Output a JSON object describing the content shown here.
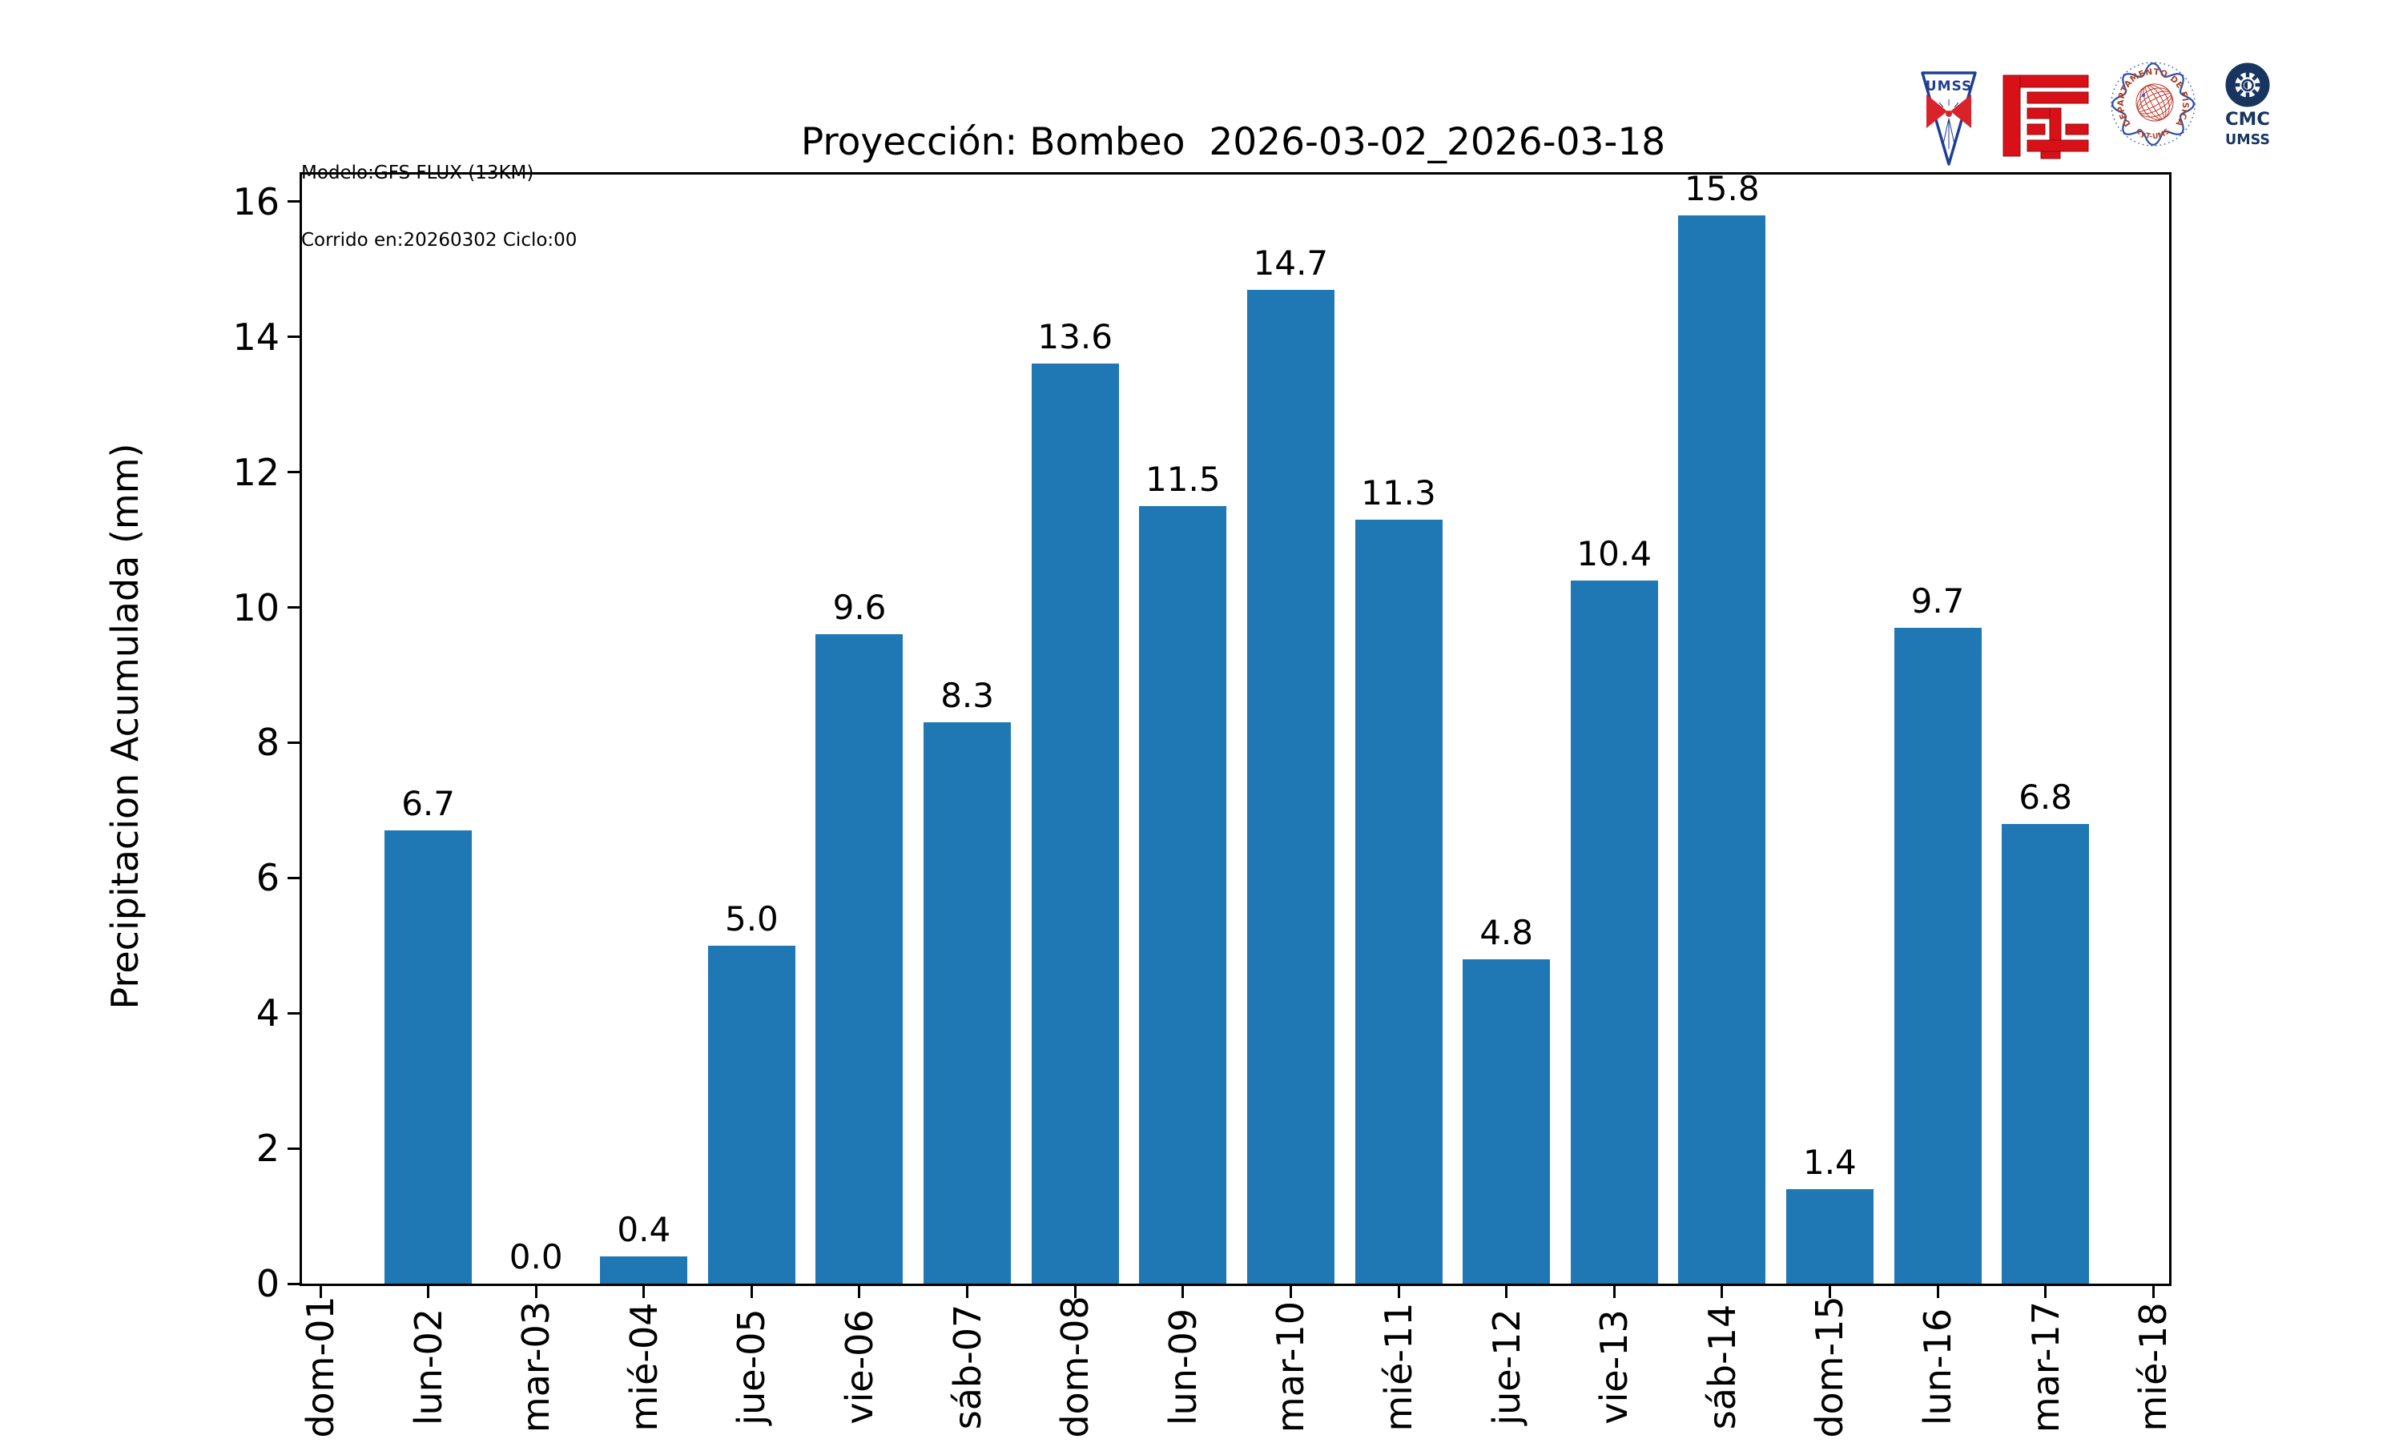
{
  "header": {
    "model_line1": "Modelo:GFS FLUX (13KM)",
    "model_line2": "Corrido en:20260302 Ciclo:00",
    "title": "Proyección: Bombeo  2026-03-02_2026-03-18"
  },
  "logos": {
    "umss_pennant": {
      "label": "UMSS"
    },
    "fisica_seal": {
      "ring_text": "DEPARTAMENTO DE FÍSICA",
      "bottom_text": "FCyT-UMSS"
    },
    "cmc": {
      "line1": "CMC",
      "line2": "UMSS"
    }
  },
  "colors": {
    "bar": "#1f77b4",
    "navy": "#17355f",
    "pennant_blue": "#1e3f94",
    "logo_red": "#d81118",
    "seal_blue": "#2d50a7",
    "seal_text": "#a8402a",
    "seal_sphere": "#c0392b",
    "axis": "#000000"
  },
  "chart_data": {
    "type": "bar",
    "title": "Proyección: Bombeo  2026-03-02_2026-03-18",
    "xlabel": "",
    "ylabel": "Precipitacion Acumulada (mm)",
    "categories": [
      "dom-01",
      "lun-02",
      "mar-03",
      "mié-04",
      "jue-05",
      "vie-06",
      "sáb-07",
      "dom-08",
      "lun-09",
      "mar-10",
      "mié-11",
      "jue-12",
      "vie-13",
      "sáb-14",
      "dom-15",
      "lun-16",
      "mar-17",
      "mié-18"
    ],
    "values": [
      null,
      6.7,
      0.0,
      0.4,
      5.0,
      9.6,
      8.3,
      13.6,
      11.5,
      14.7,
      11.3,
      4.8,
      10.4,
      15.8,
      1.4,
      9.7,
      6.8,
      null
    ],
    "value_labels_decimals": 1,
    "yticks": [
      0,
      2,
      4,
      6,
      8,
      10,
      12,
      14,
      16
    ],
    "ylim": [
      0,
      16.4
    ],
    "grid": false,
    "legend": null,
    "bar_color": "#1f77b4"
  }
}
